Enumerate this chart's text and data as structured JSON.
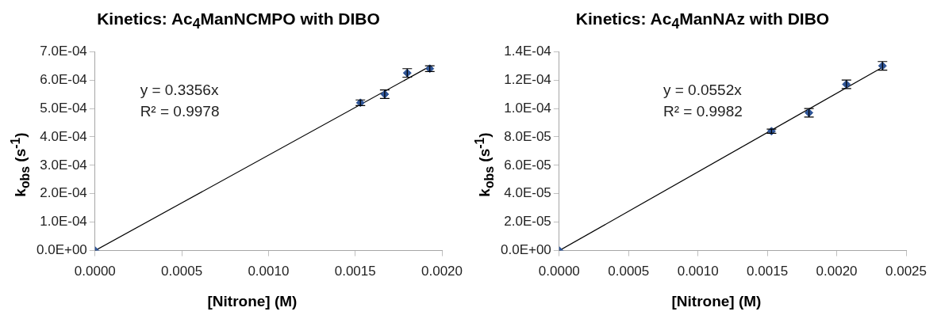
{
  "chart_data": [
    {
      "type": "scatter",
      "title": "Kinetics: Ac$_{4}$ManNCMPO with DIBO",
      "xlabel": "[Nitrone] (M)",
      "ylabel": "k$_{obs}$ (s$^{-1}$)",
      "annotations": [
        "y = 0.3356x",
        "R² = 0.9978"
      ],
      "xlim": [
        0,
        0.002
      ],
      "xticks": [
        {
          "value": 0,
          "label": "0.0000"
        },
        {
          "value": 0.0005,
          "label": "0.0005"
        },
        {
          "value": 0.001,
          "label": "0.0010"
        },
        {
          "value": 0.0015,
          "label": "0.0015"
        },
        {
          "value": 0.002,
          "label": "0.0020"
        }
      ],
      "ylim": [
        0,
        0.0007
      ],
      "yticks": [
        {
          "value": 0,
          "label": "0.0E+00"
        },
        {
          "value": 0.0001,
          "label": "1.0E-04"
        },
        {
          "value": 0.0002,
          "label": "2.0E-04"
        },
        {
          "value": 0.0003,
          "label": "3.0E-04"
        },
        {
          "value": 0.0004,
          "label": "4.0E-04"
        },
        {
          "value": 0.0005,
          "label": "5.0E-04"
        },
        {
          "value": 0.0006,
          "label": "6.0E-04"
        },
        {
          "value": 0.0007,
          "label": "7.0E-04"
        }
      ],
      "grid": false,
      "legend": false,
      "marker": "diamond",
      "series": [
        {
          "color": "#2f5597",
          "x": [
            0,
            0.00153,
            0.00167,
            0.0018,
            0.00193
          ],
          "values": [
            0,
            0.00052,
            0.00055,
            0.000625,
            0.00064
          ],
          "errors": [
            null,
            1e-05,
            1.5e-05,
            1.5e-05,
            1e-05
          ]
        },
        {
          "type": "line",
          "color": "#000000",
          "marker": "none",
          "line_style": "solid",
          "x": [
            0,
            0.00193
          ],
          "values": [
            0,
            0.000648
          ]
        }
      ]
    },
    {
      "type": "scatter",
      "title": "Kinetics: Ac$_{4}$ManNAz with DIBO",
      "xlabel": "[Nitrone] (M)",
      "ylabel": "k$_{obs}$ (s$^{-1}$)",
      "annotations": [
        "y = 0.0552x",
        "R² = 0.9982"
      ],
      "xlim": [
        0,
        0.0025
      ],
      "xticks": [
        {
          "value": 0,
          "label": "0.0000"
        },
        {
          "value": 0.0005,
          "label": "0.0005"
        },
        {
          "value": 0.001,
          "label": "0.0010"
        },
        {
          "value": 0.0015,
          "label": "0.0015"
        },
        {
          "value": 0.002,
          "label": "0.0020"
        },
        {
          "value": 0.0025,
          "label": "0.0025"
        }
      ],
      "ylim": [
        0,
        0.00014
      ],
      "yticks": [
        {
          "value": 0,
          "label": "0.0E+00"
        },
        {
          "value": 2e-05,
          "label": "2.0E-05"
        },
        {
          "value": 4e-05,
          "label": "4.0E-05"
        },
        {
          "value": 6e-05,
          "label": "6.0E-05"
        },
        {
          "value": 8e-05,
          "label": "8.0E-05"
        },
        {
          "value": 0.0001,
          "label": "1.0E-04"
        },
        {
          "value": 0.00012,
          "label": "1.2E-04"
        },
        {
          "value": 0.00014,
          "label": "1.4E-04"
        }
      ],
      "grid": false,
      "legend": false,
      "marker": "diamond",
      "series": [
        {
          "color": "#2f5597",
          "x": [
            0,
            0.00153,
            0.0018,
            0.00207,
            0.00233
          ],
          "values": [
            0,
            8.4e-05,
            9.7e-05,
            0.000117,
            0.00013
          ],
          "errors": [
            null,
            1.5e-06,
            3e-06,
            3e-06,
            3e-06
          ]
        },
        {
          "type": "line",
          "color": "#000000",
          "marker": "none",
          "line_style": "solid",
          "x": [
            0,
            0.00233
          ],
          "values": [
            0,
            0.000129
          ]
        }
      ]
    }
  ]
}
